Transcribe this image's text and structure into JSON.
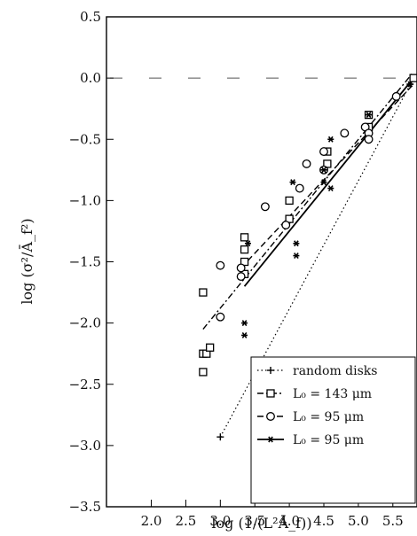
{
  "chart_data": {
    "type": "scatter",
    "title": "",
    "xlabel": "log (1/(L²Ā_f))",
    "ylabel": "log (σ²/Ā_f²)",
    "xlim": [
      1.35,
      5.85
    ],
    "ylim": [
      -3.5,
      0.5
    ],
    "xticks": [
      2.0,
      2.5,
      3.0,
      3.5,
      4.0,
      4.5,
      5.0,
      5.5
    ],
    "xtick_labels": [
      "2.0",
      "2.5",
      "3.0",
      "3.5",
      "4.0",
      "4.5",
      "5.0",
      "5.5"
    ],
    "yticks": [
      0.5,
      0.0,
      -0.5,
      -1.0,
      -1.5,
      -2.0,
      -2.5,
      -3.0,
      -3.5
    ],
    "ytick_labels": [
      "0.5",
      "0.0",
      "−0.5",
      "−1.0",
      "−1.5",
      "−2.0",
      "−2.5",
      "−3.0",
      "−3.5"
    ],
    "grid": false,
    "legend_position": "bottom-right",
    "reference_line": {
      "y": 0.0,
      "style": "dashed"
    },
    "series": [
      {
        "name": "random disks",
        "marker": "plus",
        "line": "dotted",
        "line_points": [
          [
            3.0,
            -2.93
          ],
          [
            5.85,
            0.05
          ]
        ],
        "points": [
          [
            3.0,
            -2.93
          ],
          [
            5.75,
            -0.05
          ]
        ]
      },
      {
        "name": "L₀ = 143 μm",
        "marker": "square",
        "line": "dashdot",
        "line_points": [
          [
            2.75,
            -2.05
          ],
          [
            5.8,
            0.05
          ]
        ],
        "points": [
          [
            2.75,
            -2.25
          ],
          [
            2.75,
            -2.4
          ],
          [
            2.8,
            -2.25
          ],
          [
            2.85,
            -2.2
          ],
          [
            2.75,
            -1.75
          ],
          [
            3.35,
            -1.3
          ],
          [
            3.35,
            -1.4
          ],
          [
            3.35,
            -1.5
          ],
          [
            3.35,
            -1.6
          ],
          [
            4.0,
            -1.0
          ],
          [
            4.0,
            -1.15
          ],
          [
            4.55,
            -0.6
          ],
          [
            4.55,
            -0.7
          ],
          [
            5.15,
            -0.3
          ],
          [
            5.15,
            -0.4
          ],
          [
            5.8,
            0.0
          ]
        ]
      },
      {
        "name": "L₀ = 95 μm",
        "marker": "circle",
        "line": "dashed",
        "line_points": [
          [
            3.3,
            -1.55
          ],
          [
            5.8,
            -0.05
          ]
        ],
        "points": [
          [
            3.0,
            -1.53
          ],
          [
            3.0,
            -1.95
          ],
          [
            3.3,
            -1.62
          ],
          [
            3.3,
            -1.55
          ],
          [
            3.65,
            -1.05
          ],
          [
            3.95,
            -1.2
          ],
          [
            4.15,
            -0.9
          ],
          [
            4.25,
            -0.7
          ],
          [
            4.5,
            -0.75
          ],
          [
            4.5,
            -0.6
          ],
          [
            4.8,
            -0.45
          ],
          [
            5.1,
            -0.4
          ],
          [
            5.15,
            -0.45
          ],
          [
            5.15,
            -0.5
          ],
          [
            5.55,
            -0.15
          ]
        ]
      },
      {
        "name": "L₀ = 95 μm",
        "marker": "star",
        "line": "solid",
        "line_points": [
          [
            3.35,
            -1.7
          ],
          [
            5.8,
            0.0
          ]
        ],
        "points": [
          [
            3.35,
            -2.0
          ],
          [
            3.35,
            -2.1
          ],
          [
            3.4,
            -1.35
          ],
          [
            4.05,
            -0.85
          ],
          [
            4.1,
            -1.35
          ],
          [
            4.1,
            -1.45
          ],
          [
            4.5,
            -0.75
          ],
          [
            4.5,
            -0.85
          ],
          [
            4.6,
            -0.5
          ],
          [
            4.6,
            -0.9
          ],
          [
            5.15,
            -0.3
          ],
          [
            5.75,
            -0.05
          ]
        ]
      }
    ]
  }
}
